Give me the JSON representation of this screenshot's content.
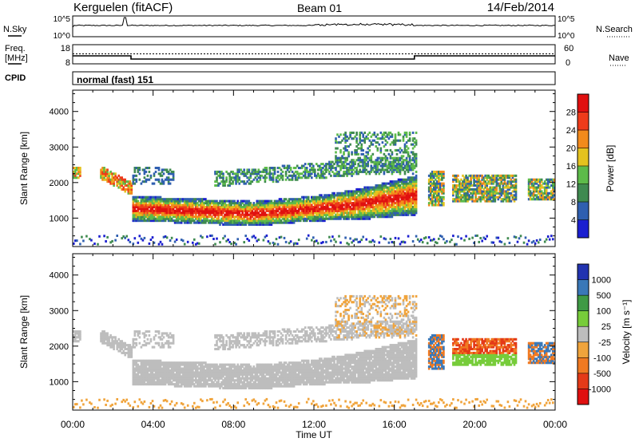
{
  "header": {
    "station": "Kerguelen (fitACF)",
    "beam": "Beam 01",
    "date": "14/Feb/2014"
  },
  "nsky_panel": {
    "left_label": "N.Sky",
    "right_label": "N.Search",
    "left_ticks": [
      "10^5",
      "10^0"
    ],
    "right_ticks": [
      "10^5",
      "10^0"
    ]
  },
  "freq_panel": {
    "left_label_line1": "Freq.",
    "left_label_line2": "[MHz]",
    "right_label": "Nave",
    "left_ticks": [
      "18",
      "8"
    ],
    "right_ticks": [
      "60",
      "0"
    ],
    "freq_mhz": [
      {
        "from_h": 0.0,
        "to_h": 2.9,
        "value": 12
      },
      {
        "from_h": 2.9,
        "to_h": 17.0,
        "value": 10
      },
      {
        "from_h": 17.0,
        "to_h": 24.0,
        "value": 12
      }
    ]
  },
  "cpid": {
    "label": "CPID",
    "value": "normal (fast) 151"
  },
  "chart_data": [
    {
      "type": "heatmap",
      "name": "Power",
      "ylabel": "Slant Range [km]",
      "xlabel": "Time UT",
      "ylim": [
        200,
        4600
      ],
      "xlim": [
        0,
        24
      ],
      "y_ticks": [
        "1000",
        "2000",
        "3000",
        "4000"
      ],
      "x_ticks": [
        "00:00",
        "04:00",
        "08:00",
        "12:00",
        "16:00",
        "20:00",
        "00:00"
      ],
      "colorbar_label": "Power [dB]",
      "colorbar_ticks": [
        "4",
        "8",
        "12",
        "16",
        "20",
        "24",
        "28"
      ],
      "colorbar_range": [
        0,
        32
      ],
      "colors": [
        "#1b1fd0",
        "#2f5fb0",
        "#3f8a50",
        "#5dbb4a",
        "#e4c21f",
        "#f28a1c",
        "#ee3b1b",
        "#e01010"
      ],
      "features": [
        {
          "region": "main echo band",
          "time_h": [
            2.9,
            17.0
          ],
          "range_km": [
            700,
            2300
          ],
          "power_db": [
            4,
            30
          ]
        },
        {
          "region": "upper scatter",
          "time_h": [
            13.0,
            17.0
          ],
          "range_km": [
            1900,
            3400
          ],
          "power_db": [
            4,
            16
          ]
        },
        {
          "region": "early echoes",
          "time_h": [
            0.0,
            2.9
          ],
          "range_km": [
            1700,
            2500
          ],
          "power_db": [
            4,
            28
          ]
        },
        {
          "region": "evening patches",
          "time_h": [
            17.5,
            24.0
          ],
          "range_km": [
            1300,
            2600
          ],
          "power_db": [
            4,
            22
          ]
        }
      ]
    },
    {
      "type": "heatmap",
      "name": "Velocity",
      "ylabel": "Slant Range [km]",
      "xlabel": "Time UT",
      "ylim": [
        200,
        4600
      ],
      "xlim": [
        0,
        24
      ],
      "y_ticks": [
        "1000",
        "2000",
        "3000",
        "4000"
      ],
      "x_ticks": [
        "00:00",
        "04:00",
        "08:00",
        "12:00",
        "16:00",
        "20:00",
        "00:00"
      ],
      "colorbar_label": "Velocity [m s⁻¹]",
      "colorbar_ticks": [
        "1000",
        "500",
        "100",
        "25",
        "-25",
        "-100",
        "-500",
        "-1000"
      ],
      "colors": [
        "#2233b0",
        "#3a78b8",
        "#3f9a45",
        "#77cc3a",
        "#bdbdbd",
        "#f0a43c",
        "#f07a22",
        "#e43a18",
        "#e01010"
      ],
      "features": [
        {
          "region": "ground scatter band",
          "time_h": [
            2.9,
            17.0
          ],
          "range_km": [
            900,
            2200
          ],
          "velocity_ms": [
            -25,
            25
          ]
        },
        {
          "region": "evening flow",
          "time_h": [
            17.5,
            22.0
          ],
          "range_km": [
            1400,
            2300
          ],
          "velocity_ms": [
            -500,
            100
          ]
        }
      ]
    }
  ]
}
